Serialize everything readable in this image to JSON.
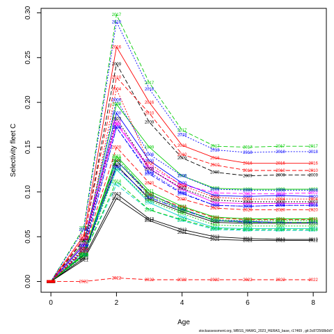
{
  "chart_data": {
    "type": "line",
    "xlabel": "Age",
    "ylabel": "Selectivity fleet C",
    "xlim": [
      -0.3,
      8.4
    ],
    "ylim": [
      -0.012,
      0.305
    ],
    "xticks": [
      0,
      2,
      4,
      6,
      8
    ],
    "xtick_labels": [
      "0",
      "2",
      "4",
      "6",
      "8"
    ],
    "yticks": [
      0.0,
      0.05,
      0.1,
      0.15,
      0.2,
      0.25,
      0.3
    ],
    "ytick_labels": [
      "0.00",
      "0.05",
      "0.10",
      "0.15",
      "0.20",
      "0.25",
      "0.30"
    ],
    "grid": false,
    "legend": "none",
    "x": [
      0,
      1,
      2,
      3,
      4,
      5,
      6,
      7,
      8
    ],
    "series": [
      {
        "name": "1994",
        "color": "#0000ff",
        "dash": "2,2",
        "values": [
          0,
          0.035,
          0.172,
          0.122,
          0.099,
          0.085,
          0.084,
          0.085,
          0.085
        ]
      },
      {
        "name": "1995",
        "color": "#000000",
        "dash": "",
        "values": [
          0,
          0.03,
          0.13,
          0.092,
          0.078,
          0.066,
          0.065,
          0.065,
          0.065
        ]
      },
      {
        "name": "1996",
        "color": "#ff0000",
        "dash": "6,3",
        "values": [
          0,
          0.033,
          0.135,
          0.097,
          0.083,
          0.071,
          0.069,
          0.069,
          0.069
        ]
      },
      {
        "name": "1997",
        "color": "#00cc00",
        "dash": "2,2",
        "values": [
          0,
          0.028,
          0.125,
          0.09,
          0.076,
          0.063,
          0.062,
          0.062,
          0.062
        ]
      },
      {
        "name": "1998",
        "color": "#0000ff",
        "dash": "8,2,2,2",
        "values": [
          0,
          0.029,
          0.128,
          0.094,
          0.08,
          0.068,
          0.066,
          0.066,
          0.066
        ]
      },
      {
        "name": "1999",
        "color": "#00cc00",
        "dash": "",
        "values": [
          0,
          0.043,
          0.198,
          0.15,
          0.118,
          0.104,
          0.103,
          0.103,
          0.103
        ]
      },
      {
        "name": "2000",
        "color": "#0000ff",
        "dash": "",
        "values": [
          0,
          0.04,
          0.188,
          0.135,
          0.11,
          0.096,
          0.095,
          0.096,
          0.095
        ]
      },
      {
        "name": "2001",
        "color": "#ff00ff",
        "dash": "",
        "values": [
          0,
          0.042,
          0.176,
          0.126,
          0.103,
          0.088,
          0.087,
          0.087,
          0.087
        ]
      },
      {
        "name": "2002",
        "color": "#ff00ff",
        "dash": "6,3",
        "values": [
          0,
          0.048,
          0.178,
          0.128,
          0.108,
          0.099,
          0.098,
          0.098,
          0.099
        ]
      },
      {
        "name": "2003",
        "color": "#000000",
        "dash": "2,2",
        "values": [
          0,
          0.037,
          0.182,
          0.126,
          0.104,
          0.091,
          0.089,
          0.089,
          0.089
        ]
      },
      {
        "name": "2004",
        "color": "#ff0000",
        "dash": "2,2",
        "values": [
          0,
          0.036,
          0.215,
          0.132,
          0.107,
          0.094,
          0.092,
          0.092,
          0.092
        ]
      },
      {
        "name": "2005",
        "color": "#0000ff",
        "dash": "6,3",
        "values": [
          0,
          0.033,
          0.172,
          0.12,
          0.098,
          0.085,
          0.084,
          0.085,
          0.085
        ]
      },
      {
        "name": "2006",
        "color": "#0000ff",
        "dash": "2,2",
        "values": [
          0,
          0.04,
          0.203,
          0.142,
          0.118,
          0.103,
          0.102,
          0.102,
          0.102
        ]
      },
      {
        "name": "2007",
        "color": "#00cccc",
        "dash": "6,3",
        "values": [
          0,
          0.03,
          0.108,
          0.08,
          0.068,
          0.058,
          0.057,
          0.057,
          0.057
        ]
      },
      {
        "name": "2008",
        "color": "#00cccc",
        "dash": "",
        "values": [
          0,
          0.034,
          0.125,
          0.088,
          0.072,
          0.06,
          0.059,
          0.059,
          0.059
        ]
      },
      {
        "name": "2009",
        "color": "#000000",
        "dash": "6,3",
        "values": [
          0,
          0.046,
          0.243,
          0.178,
          0.138,
          0.122,
          0.118,
          0.119,
          0.119
        ]
      },
      {
        "name": "2010",
        "color": "#ff0000",
        "dash": "6,3",
        "values": [
          0,
          0.048,
          0.228,
          0.188,
          0.142,
          0.13,
          0.124,
          0.124,
          0.124
        ]
      },
      {
        "name": "2011",
        "color": "#00cc00",
        "dash": "",
        "values": [
          0,
          0.031,
          0.14,
          0.101,
          0.084,
          0.072,
          0.07,
          0.07,
          0.07
        ]
      },
      {
        "name": "2012",
        "color": "#0000ff",
        "dash": "",
        "values": [
          0,
          0.03,
          0.135,
          0.098,
          0.081,
          0.068,
          0.067,
          0.066,
          0.066
        ]
      },
      {
        "name": "2013",
        "color": "#000000",
        "dash": "",
        "values": [
          0,
          0.026,
          0.098,
          0.07,
          0.058,
          0.05,
          0.048,
          0.047,
          0.047
        ]
      },
      {
        "name": "2014",
        "color": "#00cc00",
        "dash": "6,3",
        "values": [
          0,
          0.029,
          0.112,
          0.08,
          0.069,
          0.059,
          0.058,
          0.058,
          0.058
        ]
      },
      {
        "name": "2015",
        "color": "#00cc00",
        "dash": "2,2",
        "values": [
          0,
          0.031,
          0.135,
          0.096,
          0.08,
          0.069,
          0.068,
          0.068,
          0.068
        ]
      },
      {
        "name": "2016",
        "color": "#ff0000",
        "dash": "",
        "values": [
          0,
          0.051,
          0.262,
          0.2,
          0.152,
          0.138,
          0.132,
          0.132,
          0.132
        ]
      },
      {
        "name": "2017",
        "color": "#00cc00",
        "dash": "6,3",
        "values": [
          0,
          0.06,
          0.298,
          0.222,
          0.169,
          0.151,
          0.15,
          0.151,
          0.151
        ]
      },
      {
        "name": "2018",
        "color": "#0000ff",
        "dash": "2,2",
        "values": [
          0,
          0.058,
          0.29,
          0.215,
          0.164,
          0.147,
          0.144,
          0.145,
          0.145
        ]
      },
      {
        "name": "2019",
        "color": "#00cc00",
        "dash": "8,2,2,2",
        "values": [
          0,
          0.03,
          0.138,
          0.098,
          0.081,
          0.068,
          0.066,
          0.066,
          0.066
        ]
      },
      {
        "name": "2020",
        "color": "#ff0000",
        "dash": "6,3",
        "values": [
          0,
          0.034,
          0.15,
          0.11,
          0.092,
          0.082,
          0.08,
          0.08,
          0.08
        ]
      },
      {
        "name": "2021",
        "color": "#000000",
        "dash": "",
        "values": [
          0,
          0.024,
          0.093,
          0.068,
          0.055,
          0.047,
          0.046,
          0.046,
          0.046
        ]
      },
      {
        "name": "2022",
        "color": "#ff0000",
        "dash": "6,3",
        "values": [
          0,
          0.0,
          0.004,
          0.002,
          0.002,
          0.002,
          0.002,
          0.002,
          0.002
        ]
      }
    ]
  },
  "footer": "stockassessment.org, WBSS_HAWG_2023_HERAS_base, r17469 , git:3c872568b0d7"
}
